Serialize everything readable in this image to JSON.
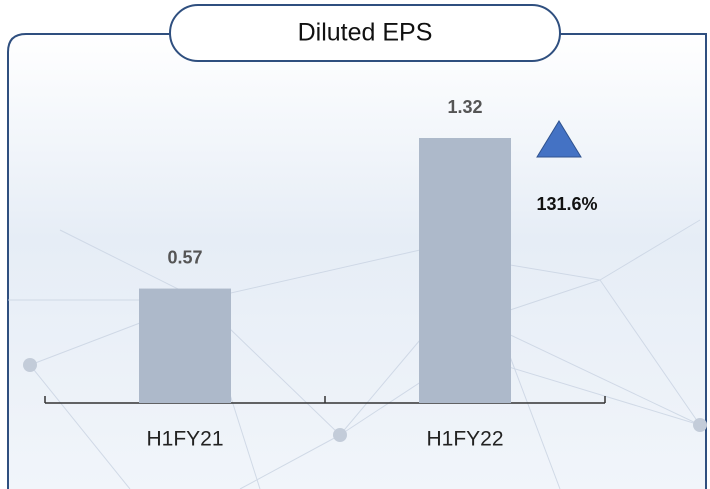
{
  "chart_data": {
    "type": "bar",
    "title": "Diluted EPS",
    "categories": [
      "H1FY21",
      "H1FY22"
    ],
    "values": [
      0.57,
      1.32
    ],
    "color": "#adb9ca",
    "annotation": "131.6%"
  }
}
